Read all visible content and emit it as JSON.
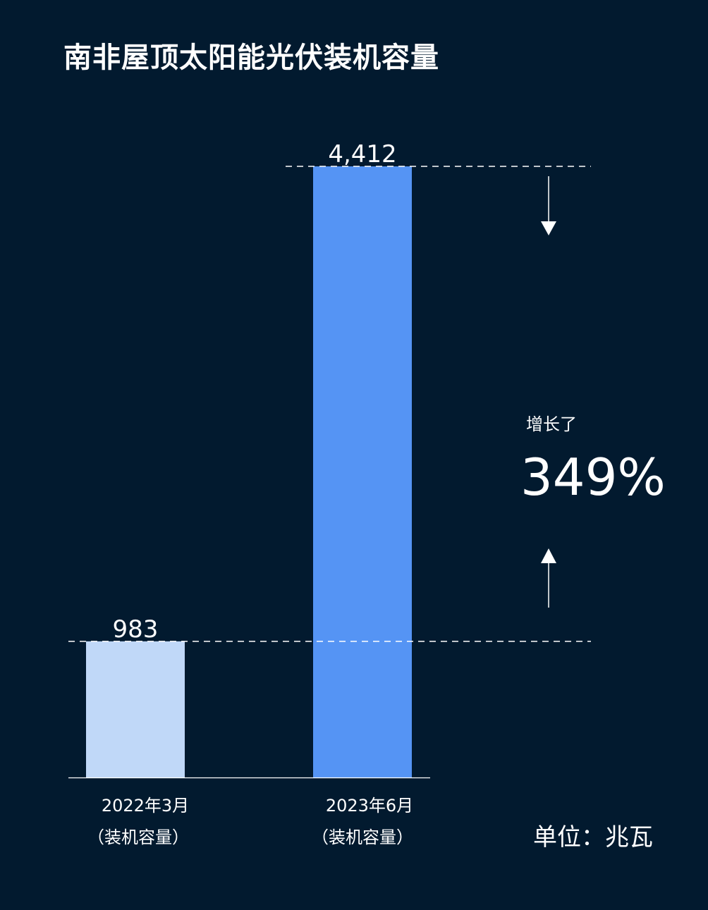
{
  "chart_data": {
    "type": "bar",
    "title": "南非屋顶太阳能光伏装机容量",
    "categories": [
      "2022年3月",
      "2023年6月"
    ],
    "category_sublabels": [
      "（装机容量）",
      "（装机容量）"
    ],
    "values": [
      983,
      4412
    ],
    "value_labels": [
      "983",
      "4,412"
    ],
    "colors": [
      "#c0d8f8",
      "#5594f4"
    ],
    "unit": "单位：兆瓦",
    "ylim": [
      0,
      4412
    ],
    "grid": false,
    "annotation": {
      "label": "增长了",
      "value": "349%"
    }
  }
}
